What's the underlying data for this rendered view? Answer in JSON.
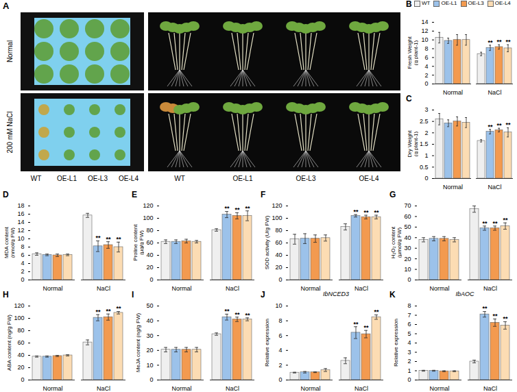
{
  "panel_a": {
    "letter": "A",
    "conditions": [
      "Normal",
      "200 mM NaCl"
    ],
    "tray_labels": [
      "WT",
      "OE-L1",
      "OE-L3",
      "OE-L4"
    ],
    "plant_labels": [
      "WT",
      "OE-L1",
      "OE-L3",
      "OE-L4"
    ]
  },
  "chart_data": [
    {
      "panel": "B",
      "type": "bar",
      "y_label": "Fresh Weight (g plant-1)",
      "legend": "top",
      "categories": [
        "Normal",
        "NaCl"
      ],
      "ylim": [
        0,
        14
      ],
      "yticks": [
        0,
        2,
        4,
        6,
        8,
        10,
        12,
        14
      ],
      "series": [
        {
          "name": "WT",
          "color": "#efefef",
          "values": [
            10.5,
            6.8
          ],
          "errors": [
            1.2,
            0.4
          ],
          "annotations": [
            null,
            null
          ]
        },
        {
          "name": "OE-L1",
          "color": "#9cc2ea",
          "values": [
            9.8,
            8.2
          ],
          "errors": [
            0.6,
            0.6
          ],
          "annotations": [
            null,
            "**"
          ]
        },
        {
          "name": "OE-L3",
          "color": "#f39a4f",
          "values": [
            10.0,
            8.4
          ],
          "errors": [
            1.2,
            0.5
          ],
          "annotations": [
            null,
            "**"
          ]
        },
        {
          "name": "OE-L4",
          "color": "#fcdcb3",
          "values": [
            10.0,
            8.1
          ],
          "errors": [
            1.2,
            0.8
          ],
          "annotations": [
            null,
            "**"
          ]
        }
      ]
    },
    {
      "panel": "C",
      "type": "bar",
      "y_label": "Dry Weight (g plant-1)",
      "categories": [
        "Normal",
        "NaCl"
      ],
      "ylim": [
        0,
        3
      ],
      "yticks": [
        0,
        0.5,
        1,
        1.5,
        2,
        2.5,
        3
      ],
      "series": [
        {
          "name": "WT",
          "color": "#efefef",
          "values": [
            2.6,
            1.65
          ],
          "errors": [
            0.25,
            0.05
          ],
          "annotations": [
            null,
            null
          ]
        },
        {
          "name": "OE-L1",
          "color": "#9cc2ea",
          "values": [
            2.42,
            2.05
          ],
          "errors": [
            0.15,
            0.1
          ],
          "annotations": [
            null,
            "**"
          ]
        },
        {
          "name": "OE-L3",
          "color": "#f39a4f",
          "values": [
            2.5,
            2.12
          ],
          "errors": [
            0.2,
            0.08
          ],
          "annotations": [
            null,
            "**"
          ]
        },
        {
          "name": "OE-L4",
          "color": "#fcdcb3",
          "values": [
            2.45,
            2.02
          ],
          "errors": [
            0.22,
            0.2
          ],
          "annotations": [
            null,
            "**"
          ]
        }
      ]
    },
    {
      "panel": "D",
      "type": "bar",
      "y_label": "MDA content (nmol/g FW)",
      "categories": [
        "Normal",
        "NaCl"
      ],
      "ylim": [
        0,
        18
      ],
      "yticks": [
        0,
        2,
        4,
        6,
        8,
        10,
        12,
        14,
        16,
        18
      ],
      "series": [
        {
          "name": "WT",
          "color": "#efefef",
          "values": [
            6.3,
            15.7
          ],
          "errors": [
            0.3,
            0.5
          ],
          "annotations": [
            null,
            null
          ]
        },
        {
          "name": "OE-L1",
          "color": "#9cc2ea",
          "values": [
            6.1,
            8.2
          ],
          "errors": [
            0.2,
            1.3
          ],
          "annotations": [
            null,
            "**"
          ]
        },
        {
          "name": "OE-L3",
          "color": "#f39a4f",
          "values": [
            6.0,
            8.5
          ],
          "errors": [
            0.3,
            0.8
          ],
          "annotations": [
            null,
            "**"
          ]
        },
        {
          "name": "OE-L4",
          "color": "#fcdcb3",
          "values": [
            6.1,
            8.0
          ],
          "errors": [
            0.2,
            1.2
          ],
          "annotations": [
            null,
            "**"
          ]
        }
      ]
    },
    {
      "panel": "E",
      "type": "bar",
      "y_label": "Proline content (µg/g FW)",
      "categories": [
        "Normal",
        "NaCl"
      ],
      "ylim": [
        0,
        120
      ],
      "yticks": [
        0,
        20,
        40,
        60,
        80,
        100,
        120
      ],
      "series": [
        {
          "name": "WT",
          "color": "#efefef",
          "values": [
            62,
            81
          ],
          "errors": [
            3,
            2
          ],
          "annotations": [
            null,
            null
          ]
        },
        {
          "name": "OE-L1",
          "color": "#9cc2ea",
          "values": [
            62,
            106
          ],
          "errors": [
            3,
            5
          ],
          "annotations": [
            null,
            "**"
          ]
        },
        {
          "name": "OE-L3",
          "color": "#f39a4f",
          "values": [
            63,
            104
          ],
          "errors": [
            3,
            5
          ],
          "annotations": [
            null,
            "**"
          ]
        },
        {
          "name": "OE-L4",
          "color": "#fcdcb3",
          "values": [
            62,
            104
          ],
          "errors": [
            2,
            8
          ],
          "annotations": [
            null,
            "**"
          ]
        }
      ]
    },
    {
      "panel": "F",
      "type": "bar",
      "y_label": "SOD activity (U/g FW)",
      "categories": [
        "Normal",
        "NaCl"
      ],
      "ylim": [
        0,
        120
      ],
      "yticks": [
        0,
        20,
        40,
        60,
        80,
        100,
        120
      ],
      "series": [
        {
          "name": "WT",
          "color": "#efefef",
          "values": [
            66,
            86
          ],
          "errors": [
            8,
            5
          ],
          "annotations": [
            null,
            null
          ]
        },
        {
          "name": "OE-L1",
          "color": "#9cc2ea",
          "values": [
            67,
            104
          ],
          "errors": [
            8,
            2
          ],
          "annotations": [
            null,
            "**"
          ]
        },
        {
          "name": "OE-L3",
          "color": "#f39a4f",
          "values": [
            67,
            102
          ],
          "errors": [
            6,
            3
          ],
          "annotations": [
            null,
            "**"
          ]
        },
        {
          "name": "OE-L4",
          "color": "#fcdcb3",
          "values": [
            68,
            102
          ],
          "errors": [
            5,
            3
          ],
          "annotations": [
            null,
            "**"
          ]
        }
      ]
    },
    {
      "panel": "G",
      "type": "bar",
      "y_label": "H₂O₂ content (µmol/g FW)",
      "categories": [
        "Normal",
        "NaCl"
      ],
      "ylim": [
        0,
        70
      ],
      "yticks": [
        0,
        10,
        20,
        30,
        40,
        50,
        60,
        70
      ],
      "series": [
        {
          "name": "WT",
          "color": "#efefef",
          "values": [
            38,
            67
          ],
          "errors": [
            2,
            3
          ],
          "annotations": [
            null,
            null
          ]
        },
        {
          "name": "OE-L1",
          "color": "#9cc2ea",
          "values": [
            39,
            49
          ],
          "errors": [
            2,
            2
          ],
          "annotations": [
            null,
            "**"
          ]
        },
        {
          "name": "OE-L3",
          "color": "#f39a4f",
          "values": [
            39,
            49
          ],
          "errors": [
            2,
            2
          ],
          "annotations": [
            null,
            "**"
          ]
        },
        {
          "name": "OE-L4",
          "color": "#fcdcb3",
          "values": [
            38,
            51
          ],
          "errors": [
            2,
            3
          ],
          "annotations": [
            null,
            "**"
          ]
        }
      ]
    },
    {
      "panel": "H",
      "type": "bar",
      "y_label": "ABA content (ng/g FW)",
      "categories": [
        "Normal",
        "NaCl"
      ],
      "ylim": [
        0,
        120
      ],
      "yticks": [
        0,
        20,
        40,
        60,
        80,
        100,
        120
      ],
      "series": [
        {
          "name": "WT",
          "color": "#efefef",
          "values": [
            38,
            61
          ],
          "errors": [
            1,
            4
          ],
          "annotations": [
            null,
            null
          ]
        },
        {
          "name": "OE-L1",
          "color": "#9cc2ea",
          "values": [
            38,
            101
          ],
          "errors": [
            1,
            5
          ],
          "annotations": [
            null,
            "**"
          ]
        },
        {
          "name": "OE-L3",
          "color": "#f39a4f",
          "values": [
            39,
            102
          ],
          "errors": [
            1,
            5
          ],
          "annotations": [
            null,
            "**"
          ]
        },
        {
          "name": "OE-L4",
          "color": "#fcdcb3",
          "values": [
            40,
            109
          ],
          "errors": [
            1,
            2
          ],
          "annotations": [
            null,
            "**"
          ]
        }
      ]
    },
    {
      "panel": "I",
      "type": "bar",
      "y_label": "MeJA content (ng/g FW)",
      "categories": [
        "Normal",
        "NaCl"
      ],
      "ylim": [
        0,
        50
      ],
      "yticks": [
        0,
        10,
        20,
        30,
        40,
        50
      ],
      "series": [
        {
          "name": "WT",
          "color": "#efefef",
          "values": [
            20.5,
            31
          ],
          "errors": [
            1.5,
            0.8
          ],
          "annotations": [
            null,
            null
          ]
        },
        {
          "name": "OE-L1",
          "color": "#9cc2ea",
          "values": [
            20.5,
            42.5
          ],
          "errors": [
            1.5,
            2
          ],
          "annotations": [
            null,
            "**"
          ]
        },
        {
          "name": "OE-L3",
          "color": "#f39a4f",
          "values": [
            20.5,
            41
          ],
          "errors": [
            1.5,
            1.5
          ],
          "annotations": [
            null,
            "**"
          ]
        },
        {
          "name": "OE-L4",
          "color": "#fcdcb3",
          "values": [
            20.5,
            41
          ],
          "errors": [
            1.5,
            1
          ],
          "annotations": [
            null,
            "**"
          ]
        }
      ]
    },
    {
      "panel": "J",
      "type": "bar",
      "title": "IbNCED3",
      "y_label": "Relative expression",
      "categories": [
        "Normal",
        "NaCl"
      ],
      "ylim": [
        0,
        10
      ],
      "yticks": [
        0,
        2,
        4,
        6,
        8,
        10
      ],
      "series": [
        {
          "name": "WT",
          "color": "#efefef",
          "values": [
            1.0,
            2.6
          ],
          "errors": [
            0.05,
            0.4
          ],
          "annotations": [
            null,
            null
          ]
        },
        {
          "name": "OE-L1",
          "color": "#9cc2ea",
          "values": [
            1.05,
            6.4
          ],
          "errors": [
            0.1,
            0.8
          ],
          "annotations": [
            null,
            "**"
          ]
        },
        {
          "name": "OE-L3",
          "color": "#f39a4f",
          "values": [
            1.05,
            6.2
          ],
          "errors": [
            0.05,
            0.5
          ],
          "annotations": [
            null,
            "**"
          ]
        },
        {
          "name": "OE-L4",
          "color": "#fcdcb3",
          "values": [
            1.35,
            8.5
          ],
          "errors": [
            0.2,
            0.3
          ],
          "annotations": [
            null,
            "**"
          ]
        }
      ]
    },
    {
      "panel": "K",
      "type": "bar",
      "title": "IbAOC",
      "y_label": "Relative expression",
      "categories": [
        "Normal",
        "NaCl"
      ],
      "ylim": [
        0,
        8
      ],
      "yticks": [
        0,
        1,
        2,
        3,
        4,
        5,
        6,
        7,
        8
      ],
      "series": [
        {
          "name": "WT",
          "color": "#efefef",
          "values": [
            1.0,
            2.0
          ],
          "errors": [
            0.05,
            0.15
          ],
          "annotations": [
            null,
            null
          ]
        },
        {
          "name": "OE-L1",
          "color": "#9cc2ea",
          "values": [
            1.0,
            7.1
          ],
          "errors": [
            0.05,
            0.3
          ],
          "annotations": [
            null,
            "**"
          ]
        },
        {
          "name": "OE-L3",
          "color": "#f39a4f",
          "values": [
            0.95,
            6.2
          ],
          "errors": [
            0.05,
            0.4
          ],
          "annotations": [
            null,
            "**"
          ]
        },
        {
          "name": "OE-L4",
          "color": "#fcdcb3",
          "values": [
            0.95,
            5.9
          ],
          "errors": [
            0.05,
            0.4
          ],
          "annotations": [
            null,
            "**"
          ]
        }
      ]
    }
  ]
}
